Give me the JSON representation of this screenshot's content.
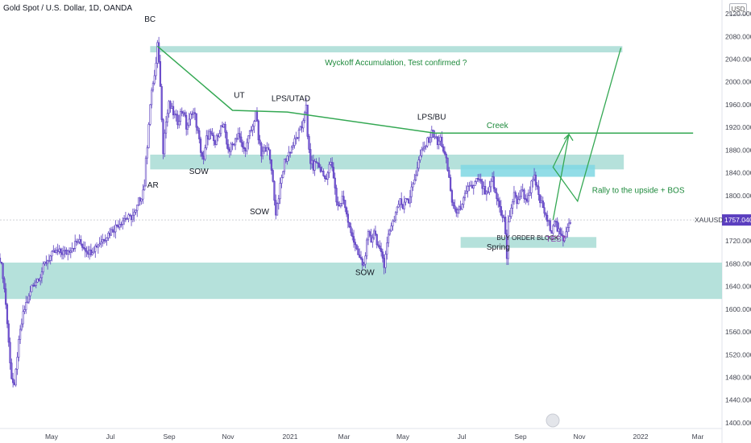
{
  "header": {
    "title": "Gold Spot / U.S. Dollar, 1D, OANDA",
    "currency": "USD"
  },
  "chart_data": {
    "type": "candlestick",
    "symbol": "XAUUSD",
    "last_price": "1757.040",
    "ylim": [
      1390,
      2130
    ],
    "y_ticks": [
      "2120.000",
      "2080.000",
      "2040.000",
      "2000.000",
      "1960.000",
      "1920.000",
      "1880.000",
      "1840.000",
      "1800.000",
      "1760.000",
      "1720.000",
      "1680.000",
      "1640.000",
      "1600.000",
      "1560.000",
      "1520.000",
      "1480.000",
      "1440.000",
      "1400.000"
    ],
    "x_ticks": [
      "May",
      "Jul",
      "Sep",
      "Nov",
      "2021",
      "Mar",
      "May",
      "Jul",
      "Sep",
      "Nov",
      "2022",
      "Mar"
    ],
    "price_path": [
      [
        0,
        1690
      ],
      [
        2,
        1660
      ],
      [
        4,
        1610
      ],
      [
        6,
        1540
      ],
      [
        8,
        1480
      ],
      [
        10,
        1460
      ],
      [
        12,
        1520
      ],
      [
        14,
        1560
      ],
      [
        16,
        1590
      ],
      [
        18,
        1610
      ],
      [
        20,
        1620
      ],
      [
        22,
        1640
      ],
      [
        25,
        1650
      ],
      [
        28,
        1660
      ],
      [
        31,
        1680
      ],
      [
        34,
        1690
      ],
      [
        38,
        1700
      ],
      [
        42,
        1700
      ],
      [
        46,
        1700
      ],
      [
        50,
        1710
      ],
      [
        54,
        1720
      ],
      [
        58,
        1710
      ],
      [
        62,
        1700
      ],
      [
        66,
        1710
      ],
      [
        70,
        1720
      ],
      [
        74,
        1730
      ],
      [
        78,
        1740
      ],
      [
        82,
        1750
      ],
      [
        86,
        1760
      ],
      [
        90,
        1760
      ],
      [
        94,
        1770
      ],
      [
        96,
        1790
      ],
      [
        98,
        1800
      ],
      [
        99,
        1810
      ],
      [
        100,
        1820
      ],
      [
        101,
        1860
      ],
      [
        102,
        1890
      ],
      [
        103,
        1930
      ],
      [
        104,
        1960
      ],
      [
        105,
        1980
      ],
      [
        106,
        2000
      ],
      [
        107,
        2010
      ],
      [
        108,
        2030
      ],
      [
        109,
        2063
      ],
      [
        110,
        2040
      ],
      [
        111,
        1990
      ],
      [
        112,
        1940
      ],
      [
        113,
        1880
      ],
      [
        114,
        1910
      ],
      [
        115,
        1930
      ],
      [
        117,
        1960
      ],
      [
        119,
        1950
      ],
      [
        121,
        1940
      ],
      [
        123,
        1930
      ],
      [
        125,
        1945
      ],
      [
        127,
        1950
      ],
      [
        129,
        1920
      ],
      [
        131,
        1930
      ],
      [
        133,
        1950
      ],
      [
        135,
        1940
      ],
      [
        137,
        1910
      ],
      [
        139,
        1880
      ],
      [
        141,
        1860
      ],
      [
        143,
        1900
      ],
      [
        145,
        1910
      ],
      [
        147,
        1900
      ],
      [
        149,
        1890
      ],
      [
        151,
        1910
      ],
      [
        153,
        1920
      ],
      [
        155,
        1920
      ],
      [
        157,
        1890
      ],
      [
        159,
        1880
      ],
      [
        161,
        1890
      ],
      [
        163,
        1900
      ],
      [
        165,
        1910
      ],
      [
        167,
        1890
      ],
      [
        169,
        1880
      ],
      [
        171,
        1890
      ],
      [
        173,
        1910
      ],
      [
        175,
        1920
      ],
      [
        177,
        1950
      ],
      [
        179,
        1900
      ],
      [
        181,
        1870
      ],
      [
        183,
        1880
      ],
      [
        185,
        1890
      ],
      [
        187,
        1860
      ],
      [
        189,
        1830
      ],
      [
        190,
        1790
      ],
      [
        191,
        1770
      ],
      [
        193,
        1800
      ],
      [
        195,
        1830
      ],
      [
        197,
        1860
      ],
      [
        199,
        1870
      ],
      [
        201,
        1880
      ],
      [
        203,
        1890
      ],
      [
        205,
        1900
      ],
      [
        207,
        1910
      ],
      [
        209,
        1920
      ],
      [
        211,
        1950
      ],
      [
        212,
        1955
      ],
      [
        213,
        1900
      ],
      [
        215,
        1860
      ],
      [
        217,
        1850
      ],
      [
        219,
        1860
      ],
      [
        221,
        1850
      ],
      [
        223,
        1840
      ],
      [
        225,
        1830
      ],
      [
        227,
        1840
      ],
      [
        229,
        1860
      ],
      [
        231,
        1830
      ],
      [
        233,
        1790
      ],
      [
        235,
        1780
      ],
      [
        237,
        1800
      ],
      [
        239,
        1780
      ],
      [
        241,
        1750
      ],
      [
        243,
        1740
      ],
      [
        245,
        1720
      ],
      [
        247,
        1700
      ],
      [
        249,
        1690
      ],
      [
        251,
        1680
      ],
      [
        252,
        1677
      ],
      [
        253,
        1700
      ],
      [
        255,
        1730
      ],
      [
        257,
        1720
      ],
      [
        259,
        1740
      ],
      [
        261,
        1720
      ],
      [
        263,
        1700
      ],
      [
        265,
        1690
      ],
      [
        266,
        1680
      ],
      [
        267,
        1700
      ],
      [
        269,
        1730
      ],
      [
        271,
        1750
      ],
      [
        273,
        1760
      ],
      [
        275,
        1780
      ],
      [
        277,
        1790
      ],
      [
        279,
        1780
      ],
      [
        281,
        1800
      ],
      [
        283,
        1790
      ],
      [
        285,
        1810
      ],
      [
        287,
        1830
      ],
      [
        289,
        1850
      ],
      [
        291,
        1870
      ],
      [
        293,
        1880
      ],
      [
        295,
        1890
      ],
      [
        297,
        1900
      ],
      [
        299,
        1910
      ],
      [
        301,
        1906
      ],
      [
        303,
        1890
      ],
      [
        305,
        1900
      ],
      [
        307,
        1880
      ],
      [
        309,
        1860
      ],
      [
        311,
        1830
      ],
      [
        313,
        1790
      ],
      [
        315,
        1770
      ],
      [
        317,
        1780
      ],
      [
        319,
        1770
      ],
      [
        321,
        1790
      ],
      [
        323,
        1810
      ],
      [
        325,
        1820
      ],
      [
        327,
        1810
      ],
      [
        329,
        1820
      ],
      [
        331,
        1830
      ],
      [
        333,
        1820
      ],
      [
        335,
        1810
      ],
      [
        337,
        1800
      ],
      [
        339,
        1810
      ],
      [
        341,
        1830
      ],
      [
        343,
        1800
      ],
      [
        345,
        1790
      ],
      [
        347,
        1770
      ],
      [
        349,
        1760
      ],
      [
        350,
        1730
      ],
      [
        351,
        1690
      ],
      [
        352,
        1750
      ],
      [
        354,
        1780
      ],
      [
        356,
        1800
      ],
      [
        358,
        1790
      ],
      [
        360,
        1800
      ],
      [
        362,
        1810
      ],
      [
        364,
        1790
      ],
      [
        366,
        1800
      ],
      [
        368,
        1820
      ],
      [
        370,
        1830
      ],
      [
        372,
        1810
      ],
      [
        374,
        1790
      ],
      [
        376,
        1780
      ],
      [
        378,
        1760
      ],
      [
        380,
        1750
      ],
      [
        382,
        1740
      ],
      [
        384,
        1760
      ],
      [
        386,
        1740
      ],
      [
        388,
        1730
      ],
      [
        390,
        1720
      ],
      [
        392,
        1740
      ],
      [
        394,
        1755
      ],
      [
        395,
        1757
      ]
    ],
    "zones": [
      {
        "x0": 104,
        "x1": 431,
        "y0": 2063,
        "y1": 2052,
        "color": "#a8dcd5"
      },
      {
        "x0": 104,
        "x1": 432,
        "y0": 1872,
        "y1": 1846,
        "color": "#a8dcd5"
      },
      {
        "x0": 319,
        "x1": 412,
        "y0": 1854,
        "y1": 1833,
        "color": "#7fd7e3"
      },
      {
        "x0": 319,
        "x1": 413,
        "y0": 1727,
        "y1": 1708,
        "color": "#a8dcd5"
      },
      {
        "x0": 0,
        "x1": 500,
        "y0": 1682,
        "y1": 1618,
        "color": "#a8dcd5"
      }
    ],
    "trend_lines": [
      {
        "points": [
          [
            109,
            2063
          ],
          [
            161,
            1950
          ],
          [
            199,
            1947
          ],
          [
            301,
            1910
          ],
          [
            333,
            1910
          ],
          [
            480,
            1910
          ]
        ],
        "color": "#34a853"
      },
      {
        "points": [
          [
            383,
            1757
          ],
          [
            393,
            1910
          ],
          [
            390,
            1912
          ]
        ],
        "color": "#34a853"
      }
    ],
    "projection": [
      [
        383,
        1757
      ],
      [
        394,
        1908
      ],
      [
        383,
        1850
      ],
      [
        400,
        1790
      ],
      [
        430,
        2060
      ]
    ],
    "annotations": [
      {
        "text": "BC",
        "x": 100,
        "y": 2106,
        "style": "ann"
      },
      {
        "text": "AR",
        "x": 102,
        "y": 1814,
        "style": "ann"
      },
      {
        "text": "UT",
        "x": 162,
        "y": 1972,
        "style": "ann"
      },
      {
        "text": "SOW",
        "x": 131,
        "y": 1838,
        "style": "ann"
      },
      {
        "text": "LPS/UTAD",
        "x": 188,
        "y": 1966,
        "style": "ann"
      },
      {
        "text": "SOW",
        "x": 173,
        "y": 1767,
        "style": "ann"
      },
      {
        "text": "SOW",
        "x": 246,
        "y": 1660,
        "style": "ann"
      },
      {
        "text": "LPS/BU",
        "x": 289,
        "y": 1934,
        "style": "ann"
      },
      {
        "text": "Creek",
        "x": 337,
        "y": 1919,
        "style": "ann-g"
      },
      {
        "text": "Wyckoff Accumulation, Test confirmed ?",
        "x": 225,
        "y": 2029,
        "style": "ann-g"
      },
      {
        "text": "Rally to the upside + BOS",
        "x": 410,
        "y": 1805,
        "style": "ann-g"
      },
      {
        "text": "BUY ORDER BLOCK",
        "x": 344,
        "y": 1722,
        "style": "ann-s"
      },
      {
        "text": "Spring",
        "x": 337,
        "y": 1705,
        "style": "ann"
      },
      {
        "text": "TEST",
        "x": 378,
        "y": 1719,
        "style": "ann-p"
      }
    ]
  }
}
